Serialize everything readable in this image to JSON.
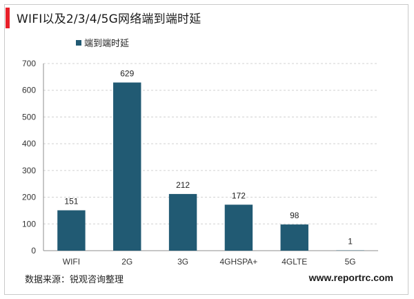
{
  "header": {
    "title": "WIFI以及2/3/4/5G网络端到端时延"
  },
  "footer": {
    "source": "数据来源：锐观咨询整理",
    "website": "www.reportrc.com"
  },
  "colors": {
    "bar": "#215a73",
    "accent": "#e8202a",
    "grid": "#d0d0d0"
  },
  "chart_data": {
    "type": "bar",
    "title": "",
    "categories": [
      "WIFI",
      "2G",
      "3G",
      "4GHSPA+",
      "4GLTE",
      "5G"
    ],
    "series": [
      {
        "name": "端到端时延",
        "values": [
          151,
          629,
          212,
          172,
          98,
          1
        ]
      }
    ],
    "data_labels": [
      "151",
      "629",
      "212",
      "172",
      "98",
      "1"
    ],
    "xlabel": "",
    "ylabel": "",
    "ylim": [
      0,
      700
    ],
    "yticks": [
      0,
      100,
      200,
      300,
      400,
      500,
      600,
      700
    ],
    "grid": true,
    "legend": "top-left"
  }
}
